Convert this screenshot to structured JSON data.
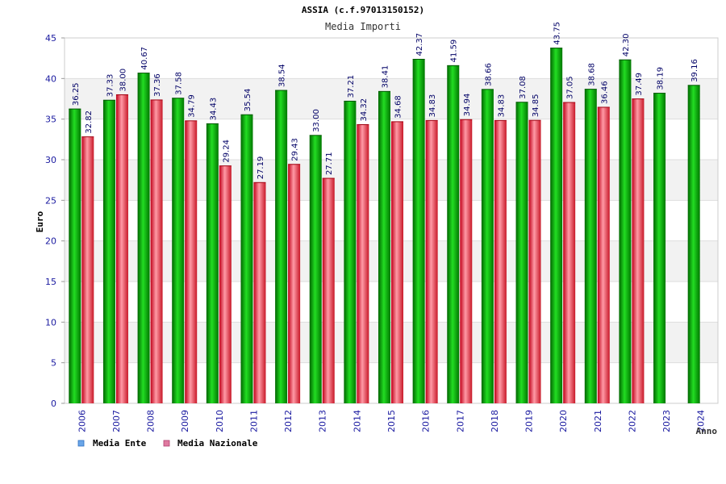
{
  "chart_data": {
    "type": "bar",
    "title": "ASSIA (c.f.97013150152)",
    "subtitle": "Media Importi",
    "xlabel": "Anno",
    "ylabel": "Euro",
    "ylim": [
      0,
      45
    ],
    "yticks": [
      0,
      5,
      10,
      15,
      20,
      25,
      30,
      35,
      40,
      45
    ],
    "grid": true,
    "legend_position": "bottom-left",
    "categories": [
      "2006",
      "2007",
      "2008",
      "2009",
      "2010",
      "2011",
      "2012",
      "2013",
      "2014",
      "2015",
      "2016",
      "2017",
      "2018",
      "2019",
      "2020",
      "2021",
      "2022",
      "2023",
      "2024"
    ],
    "series": [
      {
        "name": "Media Ente",
        "color": "#00a000",
        "legend_color": "#6aa6e8",
        "values": [
          36.25,
          37.33,
          40.67,
          37.58,
          34.43,
          35.54,
          38.54,
          33.0,
          37.21,
          38.41,
          42.37,
          41.59,
          38.66,
          37.08,
          43.75,
          38.68,
          42.3,
          38.19,
          39.16
        ],
        "labels": [
          "36.25",
          "37.33",
          "40.67",
          "37.58",
          "34.43",
          "35.54",
          "38.54",
          "33.00",
          "37.21",
          "38.41",
          "42.37",
          "41.59",
          "38.66",
          "37.08",
          "43.75",
          "38.68",
          "42.30",
          "38.19",
          "39.16"
        ]
      },
      {
        "name": "Media Nazionale",
        "color": "#e02030",
        "legend_color": "#e07aa0",
        "values": [
          32.82,
          38.0,
          37.36,
          34.79,
          29.24,
          27.19,
          29.43,
          27.71,
          34.32,
          34.68,
          34.83,
          34.94,
          34.83,
          34.85,
          37.05,
          36.46,
          37.49,
          null,
          null
        ],
        "labels": [
          "32.82",
          "38.00",
          "37.36",
          "34.79",
          "29.24",
          "27.19",
          "29.43",
          "27.71",
          "34.32",
          "34.68",
          "34.83",
          "34.94",
          "34.83",
          "34.85",
          "37.05",
          "36.46",
          "37.49",
          null,
          null
        ]
      }
    ]
  }
}
